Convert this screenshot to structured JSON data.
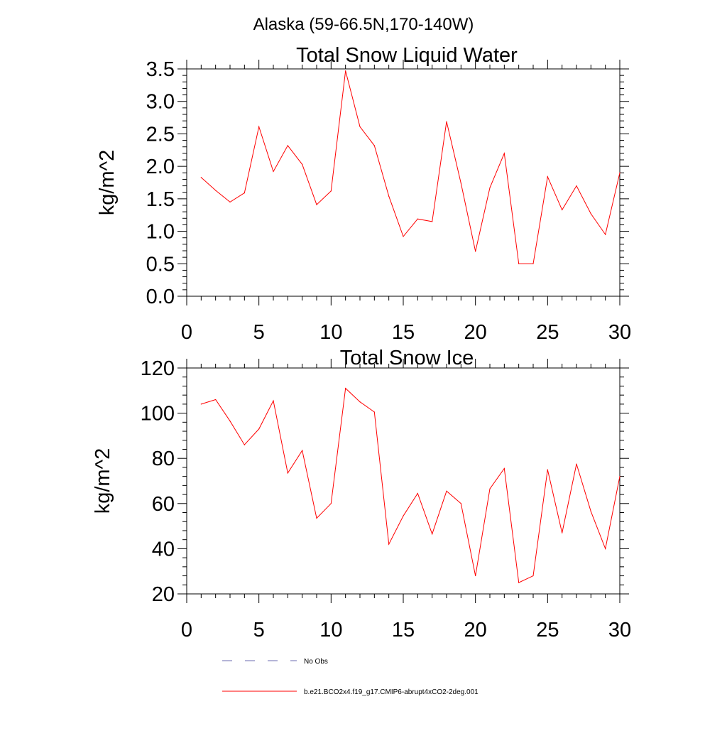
{
  "page_title": "Alaska (59-66.5N,170-140W)",
  "colors": {
    "series": "#ff0000",
    "obs": "#6b6bb0",
    "axis": "#000000"
  },
  "chart_data": [
    {
      "type": "line",
      "title": "Total Snow Liquid Water",
      "xlabel": "",
      "ylabel": "kg/m^2",
      "xlim": [
        0,
        30
      ],
      "ylim": [
        0,
        3.5
      ],
      "xticks": [
        0,
        5,
        10,
        15,
        20,
        25,
        30
      ],
      "yticks": [
        0,
        0.5,
        1,
        1.5,
        2,
        2.5,
        3,
        3.5
      ],
      "ytick_labels": [
        "0.0",
        "0.5",
        "1.0",
        "1.5",
        "2.0",
        "2.5",
        "3.0",
        "3.5"
      ],
      "grid": false,
      "series": [
        {
          "name": "b.e21.BCO2x4.f19_g17.CMIP6-abrupt4xCO2-2deg.001",
          "x": [
            1,
            2,
            3,
            4,
            5,
            6,
            7,
            8,
            9,
            10,
            11,
            12,
            13,
            14,
            15,
            16,
            17,
            18,
            19,
            20,
            21,
            22,
            23,
            24,
            25,
            26,
            27,
            28,
            29,
            30
          ],
          "values": [
            1.83,
            1.63,
            1.45,
            1.59,
            2.61,
            1.92,
            2.32,
            2.03,
            1.41,
            1.62,
            3.47,
            2.61,
            2.32,
            1.54,
            0.92,
            1.19,
            1.15,
            2.69,
            1.74,
            0.69,
            1.67,
            2.2,
            0.5,
            0.5,
            1.84,
            1.33,
            1.7,
            1.27,
            0.95,
            1.9
          ]
        }
      ]
    },
    {
      "type": "line",
      "title": "Total Snow Ice",
      "xlabel": "",
      "ylabel": "kg/m^2",
      "xlim": [
        0,
        30
      ],
      "ylim": [
        20,
        120
      ],
      "xticks": [
        0,
        5,
        10,
        15,
        20,
        25,
        30
      ],
      "yticks": [
        20,
        40,
        60,
        80,
        100,
        120
      ],
      "ytick_labels": [
        "20",
        "40",
        "60",
        "80",
        "100",
        "120"
      ],
      "grid": false,
      "series": [
        {
          "name": "b.e21.BCO2x4.f19_g17.CMIP6-abrupt4xCO2-2deg.001",
          "x": [
            1,
            2,
            3,
            4,
            5,
            6,
            7,
            8,
            9,
            10,
            11,
            12,
            13,
            14,
            15,
            16,
            17,
            18,
            19,
            20,
            21,
            22,
            23,
            24,
            25,
            26,
            27,
            28,
            29,
            30
          ],
          "values": [
            104,
            106,
            96.5,
            86,
            93,
            105.5,
            73.5,
            83.5,
            53.5,
            60,
            111,
            105,
            100.5,
            42,
            54.5,
            64.5,
            46.5,
            65.5,
            60,
            28,
            66.5,
            75.5,
            25,
            28,
            75,
            47,
            77.5,
            56.5,
            40,
            72
          ]
        }
      ]
    }
  ],
  "legend": {
    "items": [
      {
        "label": "No Obs",
        "style": "dashed"
      },
      {
        "label": "b.e21.BCO2x4.f19_g17.CMIP6-abrupt4xCO2-2deg.001",
        "style": "solid"
      }
    ]
  }
}
